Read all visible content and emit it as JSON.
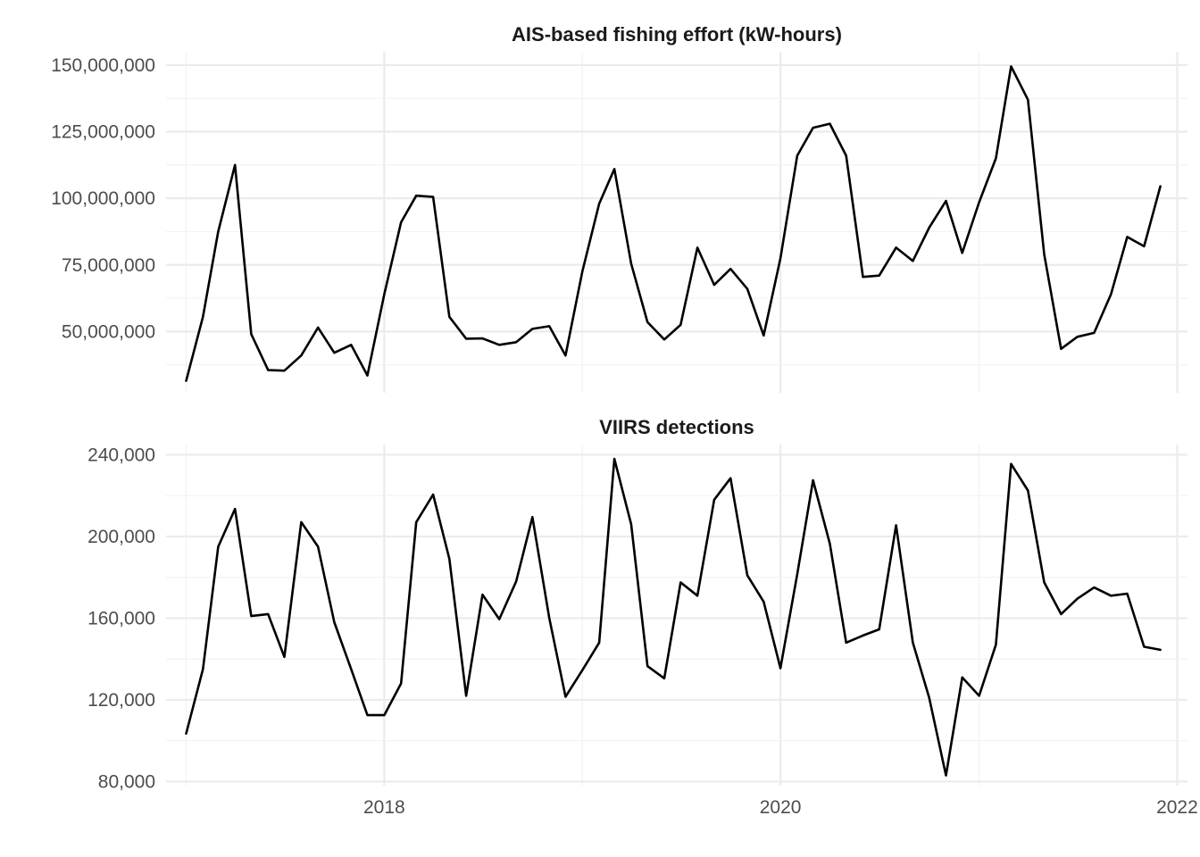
{
  "chart_data": [
    {
      "type": "line",
      "title": "AIS-based fishing effort (kW-hours)",
      "xlabel": "",
      "ylabel": "",
      "x_tick_labels": [
        "2018",
        "2020",
        "2022"
      ],
      "y_tick_labels": [
        "50,000,000",
        "75,000,000",
        "100,000,000",
        "125,000,000",
        "150,000,000"
      ],
      "y_ticks": [
        50000000,
        75000000,
        100000000,
        125000000,
        150000000
      ],
      "ylim": [
        27000000,
        155000000
      ],
      "xlim": [
        "2016-11-25",
        "2022-01-20"
      ],
      "grid": true,
      "x": [
        "2017-01",
        "2017-02",
        "2017-03",
        "2017-04",
        "2017-05",
        "2017-06",
        "2017-07",
        "2017-08",
        "2017-09",
        "2017-10",
        "2017-11",
        "2017-12",
        "2018-01",
        "2018-02",
        "2018-03",
        "2018-04",
        "2018-05",
        "2018-06",
        "2018-07",
        "2018-08",
        "2018-09",
        "2018-10",
        "2018-11",
        "2018-12",
        "2019-01",
        "2019-02",
        "2019-03",
        "2019-04",
        "2019-05",
        "2019-06",
        "2019-07",
        "2019-08",
        "2019-09",
        "2019-10",
        "2019-11",
        "2019-12",
        "2020-01",
        "2020-02",
        "2020-03",
        "2020-04",
        "2020-05",
        "2020-06",
        "2020-07",
        "2020-08",
        "2020-09",
        "2020-10",
        "2020-11",
        "2020-12",
        "2021-01",
        "2021-02",
        "2021-03",
        "2021-04",
        "2021-05",
        "2021-06",
        "2021-07",
        "2021-08",
        "2021-09",
        "2021-10",
        "2021-11",
        "2021-12"
      ],
      "values": [
        31500000,
        55500000,
        87500000,
        112500000,
        49000000,
        35500000,
        35300000,
        41000000,
        51500000,
        42000000,
        45000000,
        33500000,
        64000000,
        91000000,
        101000000,
        100500000,
        55500000,
        47300000,
        47400000,
        45000000,
        46000000,
        51000000,
        52000000,
        41000000,
        72500000,
        98000000,
        111000000,
        75500000,
        53500000,
        47000000,
        52500000,
        81500000,
        67500000,
        73500000,
        66000000,
        48500000,
        77500000,
        116000000,
        126500000,
        128000000,
        116000000,
        70500000,
        71000000,
        81500000,
        76500000,
        89000000,
        99000000,
        79500000,
        98500000,
        115000000,
        149500000,
        137000000,
        79000000,
        43500000,
        48000000,
        49500000,
        64000000,
        85500000,
        82000000,
        104500000
      ]
    },
    {
      "type": "line",
      "title": "VIIRS detections",
      "xlabel": "",
      "ylabel": "",
      "x_tick_labels": [
        "2018",
        "2020",
        "2022"
      ],
      "y_tick_labels": [
        "80,000",
        "120,000",
        "160,000",
        "200,000",
        "240,000"
      ],
      "y_ticks": [
        80000,
        120000,
        160000,
        200000,
        240000
      ],
      "ylim": [
        78000,
        245000
      ],
      "xlim": [
        "2016-11-25",
        "2022-01-20"
      ],
      "grid": true,
      "x": [
        "2017-01",
        "2017-02",
        "2017-03",
        "2017-04",
        "2017-05",
        "2017-06",
        "2017-07",
        "2017-08",
        "2017-09",
        "2017-10",
        "2017-11",
        "2017-12",
        "2018-01",
        "2018-02",
        "2018-03",
        "2018-04",
        "2018-05",
        "2018-06",
        "2018-07",
        "2018-08",
        "2018-09",
        "2018-10",
        "2018-11",
        "2018-12",
        "2019-01",
        "2019-02",
        "2019-03",
        "2019-04",
        "2019-05",
        "2019-06",
        "2019-07",
        "2019-08",
        "2019-09",
        "2019-10",
        "2019-11",
        "2019-12",
        "2020-01",
        "2020-02",
        "2020-03",
        "2020-04",
        "2020-05",
        "2020-06",
        "2020-07",
        "2020-08",
        "2020-09",
        "2020-10",
        "2020-11",
        "2020-12",
        "2021-01",
        "2021-02",
        "2021-03",
        "2021-04",
        "2021-05",
        "2021-06",
        "2021-07",
        "2021-08",
        "2021-09",
        "2021-10",
        "2021-11",
        "2021-12"
      ],
      "values": [
        103500,
        135000,
        195000,
        213500,
        161000,
        162000,
        141000,
        207000,
        195000,
        158000,
        135000,
        112500,
        112500,
        128000,
        207000,
        220500,
        189000,
        122000,
        171500,
        159500,
        178000,
        209500,
        160000,
        121500,
        134500,
        148000,
        238000,
        206000,
        136500,
        130500,
        177500,
        171000,
        218000,
        228500,
        181000,
        168000,
        135500,
        181500,
        227500,
        196500,
        148000,
        151500,
        154500,
        205500,
        148000,
        121000,
        83000,
        131000,
        122000,
        147000,
        235500,
        222500,
        177500,
        162000,
        169500,
        175000,
        171000,
        172000,
        146000,
        144500
      ]
    }
  ]
}
